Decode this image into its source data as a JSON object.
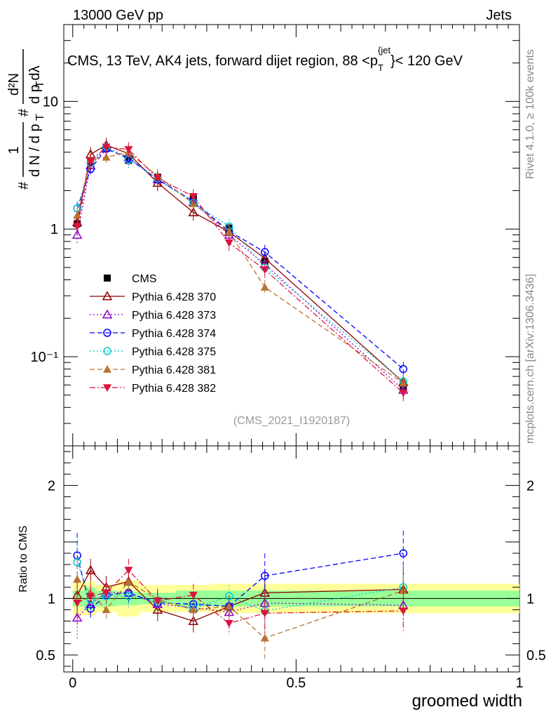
{
  "header": {
    "left": "13000 GeV pp",
    "right": "Jets"
  },
  "side": {
    "rivet": "Rivet 4.1.0, ≥ 100k events",
    "mcplots": "mcplots.cern.ch [arXiv:1306.3436]"
  },
  "colors": {
    "band_inner": "#99ff99",
    "band_outer": "#ffff99",
    "data": "#000000"
  },
  "chart_data": [
    {
      "type": "line",
      "title": "CMS, 13 TeV, AK4 jets, forward dijet region, 88 <p_T^{jet}< 120 GeV",
      "ylabel": "1/(dN/dp_T) d²N/(dp_T dλ)",
      "ylabel_parts": {
        "num": "1",
        "den": "d N / d p",
        "rhs_num": "d²N",
        "rhs_den": "d p  dλ",
        "sub": "T",
        "hash": "#"
      },
      "xlabel": "",
      "yscale": "log",
      "ylim": [
        0.02,
        40
      ],
      "xlim": [
        -0.02,
        1.0
      ],
      "yticks": [
        {
          "v": 10,
          "label": "10"
        },
        {
          "v": 1,
          "label": "1"
        },
        {
          "v": 0.1,
          "label": "10⁻¹"
        }
      ],
      "watermark": "(CMS_2021_I1920187)",
      "x": [
        0.01,
        0.04,
        0.075,
        0.125,
        0.19,
        0.27,
        0.35,
        0.43,
        0.74
      ],
      "series": [
        {
          "name": "CMS",
          "color": "#000000",
          "marker": "filled-square",
          "dash": "none",
          "values": [
            1.1,
            3.35,
            4.3,
            3.45,
            2.55,
            1.75,
            1.02,
            0.56,
            0.058
          ]
        },
        {
          "name": "Pythia 6.428 370",
          "color": "#8b0000",
          "marker": "open-triangle-up",
          "dash": "solid",
          "values": [
            1.13,
            3.85,
            4.55,
            3.9,
            2.3,
            1.35,
            0.95,
            0.59,
            0.063
          ]
        },
        {
          "name": "Pythia 6.428 373",
          "color": "#9400d3",
          "marker": "open-triangle-up",
          "dash": "dotted",
          "values": [
            0.9,
            3.15,
            4.35,
            3.65,
            2.45,
            1.62,
            0.9,
            0.53,
            0.055
          ]
        },
        {
          "name": "Pythia 6.428 374",
          "color": "#0000ff",
          "marker": "open-circle",
          "dash": "dashed",
          "values": [
            1.45,
            2.95,
            4.25,
            3.58,
            2.45,
            1.65,
            0.96,
            0.66,
            0.08
          ]
        },
        {
          "name": "Pythia 6.428 375",
          "color": "#00cccc",
          "marker": "open-circle",
          "dash": "dotted",
          "values": [
            1.45,
            3.3,
            4.4,
            3.5,
            2.5,
            1.6,
            1.05,
            0.5,
            0.064
          ]
        },
        {
          "name": "Pythia 6.428 381",
          "color": "#b87333",
          "marker": "filled-triangle-up",
          "dash": "dashed",
          "values": [
            1.28,
            3.5,
            3.65,
            4.0,
            2.6,
            1.58,
            0.95,
            0.35,
            0.062
          ]
        },
        {
          "name": "Pythia 6.428 382",
          "color": "#dc143c",
          "marker": "filled-triangle-down",
          "dash": "dashdot",
          "values": [
            1.05,
            3.4,
            4.4,
            4.2,
            2.5,
            1.8,
            0.78,
            0.48,
            0.052
          ]
        }
      ]
    },
    {
      "type": "line",
      "title": "",
      "ylabel": "Ratio to CMS",
      "xlabel": "groomed width",
      "yscale": "linear",
      "ylim": [
        0.35,
        2.35
      ],
      "xlim": [
        -0.02,
        1.0
      ],
      "yticks": [
        {
          "v": 2,
          "label": "2"
        },
        {
          "v": 1,
          "label": "1"
        },
        {
          "v": 0.5,
          "label": "0.5"
        }
      ],
      "xticks": [
        {
          "v": 0,
          "label": "0"
        },
        {
          "v": 0.5,
          "label": "0.5"
        },
        {
          "v": 1,
          "label": "1"
        }
      ],
      "bands": {
        "edges": [
          0.0,
          0.025,
          0.05,
          0.1,
          0.15,
          0.23,
          0.31,
          0.39,
          0.47,
          1.0
        ],
        "inner": [
          0.07,
          0.1,
          0.07,
          0.06,
          0.05,
          0.07,
          0.07,
          0.07,
          0.07
        ],
        "outer": [
          0.15,
          0.15,
          0.12,
          0.16,
          0.12,
          0.12,
          0.13,
          0.13,
          0.13
        ]
      },
      "series": [
        {
          "name": "Pythia 6.428 370",
          "values": [
            1.03,
            1.25,
            1.1,
            1.15,
            0.9,
            0.8,
            0.93,
            1.05,
            1.08
          ]
        },
        {
          "name": "Pythia 6.428 373",
          "values": [
            0.83,
            0.95,
            1.05,
            1.05,
            0.95,
            0.92,
            0.88,
            0.96,
            0.94
          ]
        },
        {
          "name": "Pythia 6.428 374",
          "values": [
            1.38,
            0.91,
            1.03,
            1.05,
            0.96,
            0.95,
            0.93,
            1.2,
            1.4
          ]
        },
        {
          "name": "Pythia 6.428 375",
          "values": [
            1.32,
            0.99,
            1.02,
            1.02,
            0.98,
            0.91,
            1.02,
            0.89,
            1.1
          ]
        },
        {
          "name": "Pythia 6.428 381",
          "values": [
            1.17,
            1.05,
            0.9,
            1.15,
            0.99,
            0.9,
            0.93,
            0.65,
            1.07
          ]
        },
        {
          "name": "Pythia 6.428 382",
          "values": [
            0.96,
            1.02,
            1.05,
            1.25,
            0.98,
            1.03,
            0.78,
            0.87,
            0.89
          ]
        }
      ]
    }
  ]
}
